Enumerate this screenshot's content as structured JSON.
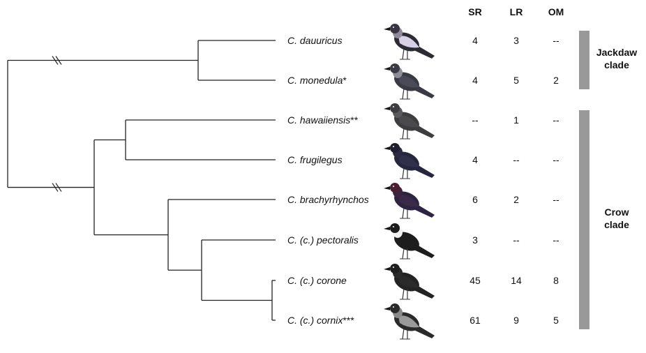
{
  "columns": [
    "SR",
    "LR",
    "OM"
  ],
  "rows": [
    {
      "taxon": "C. dauuricus",
      "suffix": "",
      "values": [
        "4",
        "3",
        "--"
      ],
      "plumage": {
        "body": "#2b2b33",
        "mantle": "#d8d0e6",
        "head": "#3a3340",
        "nape": "#8f8a99"
      }
    },
    {
      "taxon": "C. monedula",
      "suffix": "*",
      "values": [
        "4",
        "5",
        "2"
      ],
      "plumage": {
        "body": "#3a3a45",
        "mantle": "#4a4a58",
        "head": "#3a3a45",
        "nape": "#8e8e99"
      }
    },
    {
      "taxon": "C. hawaiiensis",
      "suffix": "**",
      "values": [
        "--",
        "1",
        "--"
      ],
      "plumage": {
        "body": "#3d3d3f",
        "mantle": "#4a4a4d",
        "head": "#3d3d3f",
        "nape": "#5a5a5e"
      }
    },
    {
      "taxon": "C. frugilegus",
      "suffix": "",
      "values": [
        "4",
        "--",
        "--"
      ],
      "plumage": {
        "body": "#26263e",
        "mantle": "#30304a",
        "head": "#1e1e30",
        "nape": "#2a2a44"
      }
    },
    {
      "taxon": "C. brachyrhynchos",
      "suffix": "",
      "values": [
        "6",
        "2",
        "--"
      ],
      "plumage": {
        "body": "#2c2440",
        "mantle": "#3a2a48",
        "head": "#4a2030",
        "nape": "#3a2440"
      }
    },
    {
      "taxon": "C. (c.) pectoralis",
      "suffix": "",
      "values": [
        "3",
        "--",
        "--"
      ],
      "plumage": {
        "body": "#1d1d1d",
        "mantle": "#1d1d1d",
        "head": "#1d1d1d",
        "nape": "#f0f0f0"
      }
    },
    {
      "taxon": "C. (c.) corone",
      "suffix": "",
      "values": [
        "45",
        "14",
        "8"
      ],
      "plumage": {
        "body": "#232323",
        "mantle": "#2a2a2a",
        "head": "#1f1f1f",
        "nape": "#2a2a2a"
      }
    },
    {
      "taxon": "C. (c.) cornix",
      "suffix": "***",
      "values": [
        "61",
        "9",
        "5"
      ],
      "plumage": {
        "body": "#2a2a2a",
        "mantle": "#9a9a9a",
        "head": "#2a2a2a",
        "nape": "#8a8a8a"
      }
    }
  ],
  "clades": [
    {
      "label_lines": [
        "Jackdaw",
        "clade"
      ],
      "from_row": 0,
      "to_row": 1
    },
    {
      "label_lines": [
        "Crow",
        "clade"
      ],
      "from_row": 2,
      "to_row": 7
    }
  ],
  "tree": {
    "tips": [
      0,
      1,
      2,
      3,
      4,
      5,
      6,
      7
    ],
    "internal_nodes": [
      {
        "children": [
          "t0",
          "t1"
        ]
      },
      {
        "children": [
          "t2",
          "t3"
        ]
      },
      {
        "children": [
          "t6",
          "t7"
        ]
      },
      {
        "children": [
          "t5",
          "n2"
        ]
      },
      {
        "children": [
          "t4",
          "n3"
        ]
      },
      {
        "children": [
          "n1",
          "n4"
        ]
      },
      {
        "children": [
          "n0",
          "n5"
        ]
      }
    ],
    "broken_branches": [
      "n0",
      "n5"
    ]
  },
  "colors": {
    "clade_bar": "#999999",
    "branch": "#222222"
  }
}
